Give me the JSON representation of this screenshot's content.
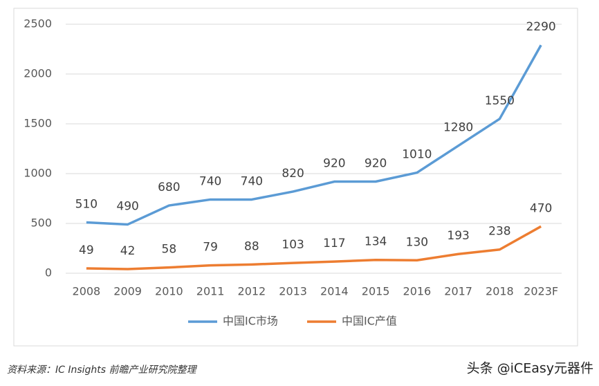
{
  "chart_data": {
    "type": "line",
    "categories": [
      "2008",
      "2009",
      "2010",
      "2011",
      "2012",
      "2013",
      "2014",
      "2015",
      "2016",
      "2017",
      "2018",
      "2023F"
    ],
    "series": [
      {
        "name": "中国IC市场",
        "color": "#5b9bd5",
        "values": [
          510,
          490,
          680,
          740,
          740,
          820,
          920,
          920,
          1010,
          1280,
          1550,
          2290
        ]
      },
      {
        "name": "中国IC产值",
        "color": "#ed7d31",
        "values": [
          49,
          42,
          58,
          79,
          88,
          103,
          117,
          134,
          130,
          193,
          238,
          470
        ]
      }
    ],
    "ylim": [
      0,
      2500
    ],
    "yticks": [
      0,
      500,
      1000,
      1500,
      2000,
      2500
    ],
    "grid": true,
    "data_labels": true,
    "legend": "bottom"
  },
  "footer": {
    "source": "资料来源：IC Insights 前瞻产业研究院整理",
    "credit": "头条 @iCEasy元器件"
  }
}
